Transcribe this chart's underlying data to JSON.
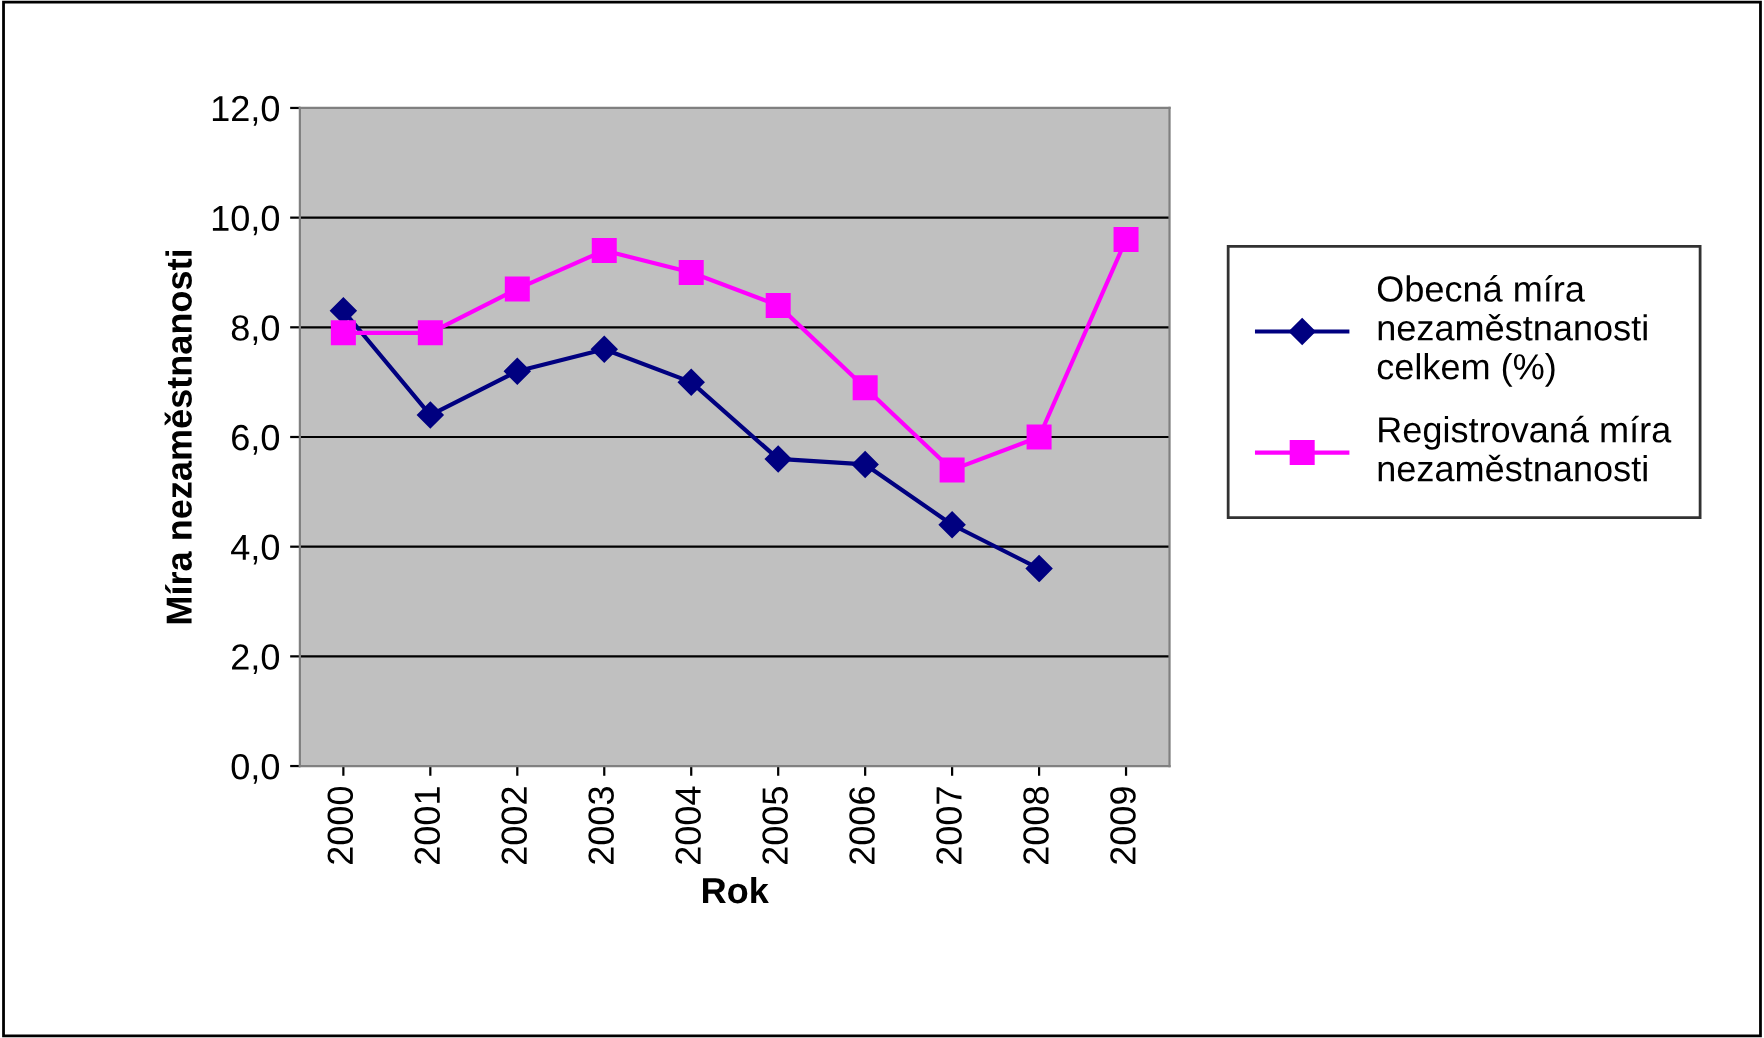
{
  "chart_data": {
    "type": "line",
    "xlabel": "Rok",
    "ylabel": "Míra nezaměstnanosti",
    "categories": [
      "2000",
      "2001",
      "2002",
      "2003",
      "2004",
      "2005",
      "2006",
      "2007",
      "2008",
      "2009"
    ],
    "series": [
      {
        "name": "Obecná míra nezaměstnanosti celkem (%)",
        "color": "#000080",
        "marker": "diamond",
        "values": [
          8.3,
          6.4,
          7.2,
          7.6,
          7.0,
          5.6,
          5.5,
          4.4,
          3.6,
          null
        ]
      },
      {
        "name": "Registrovaná míra nezaměstnanosti",
        "color": "#ff00ff",
        "marker": "square",
        "values": [
          7.9,
          7.9,
          8.7,
          9.4,
          9.0,
          8.4,
          6.9,
          5.4,
          6.0,
          9.6
        ]
      }
    ],
    "ylim": [
      0,
      12
    ],
    "yticks": [
      {
        "value": 0,
        "label": "0,0"
      },
      {
        "value": 2,
        "label": "2,0"
      },
      {
        "value": 4,
        "label": "4,0"
      },
      {
        "value": 6,
        "label": "6,0"
      },
      {
        "value": 8,
        "label": "8,0"
      },
      {
        "value": 10,
        "label": "10,0"
      },
      {
        "value": 12,
        "label": "12,0"
      }
    ],
    "grid": "y",
    "legend": "right",
    "line_style": "solid"
  }
}
